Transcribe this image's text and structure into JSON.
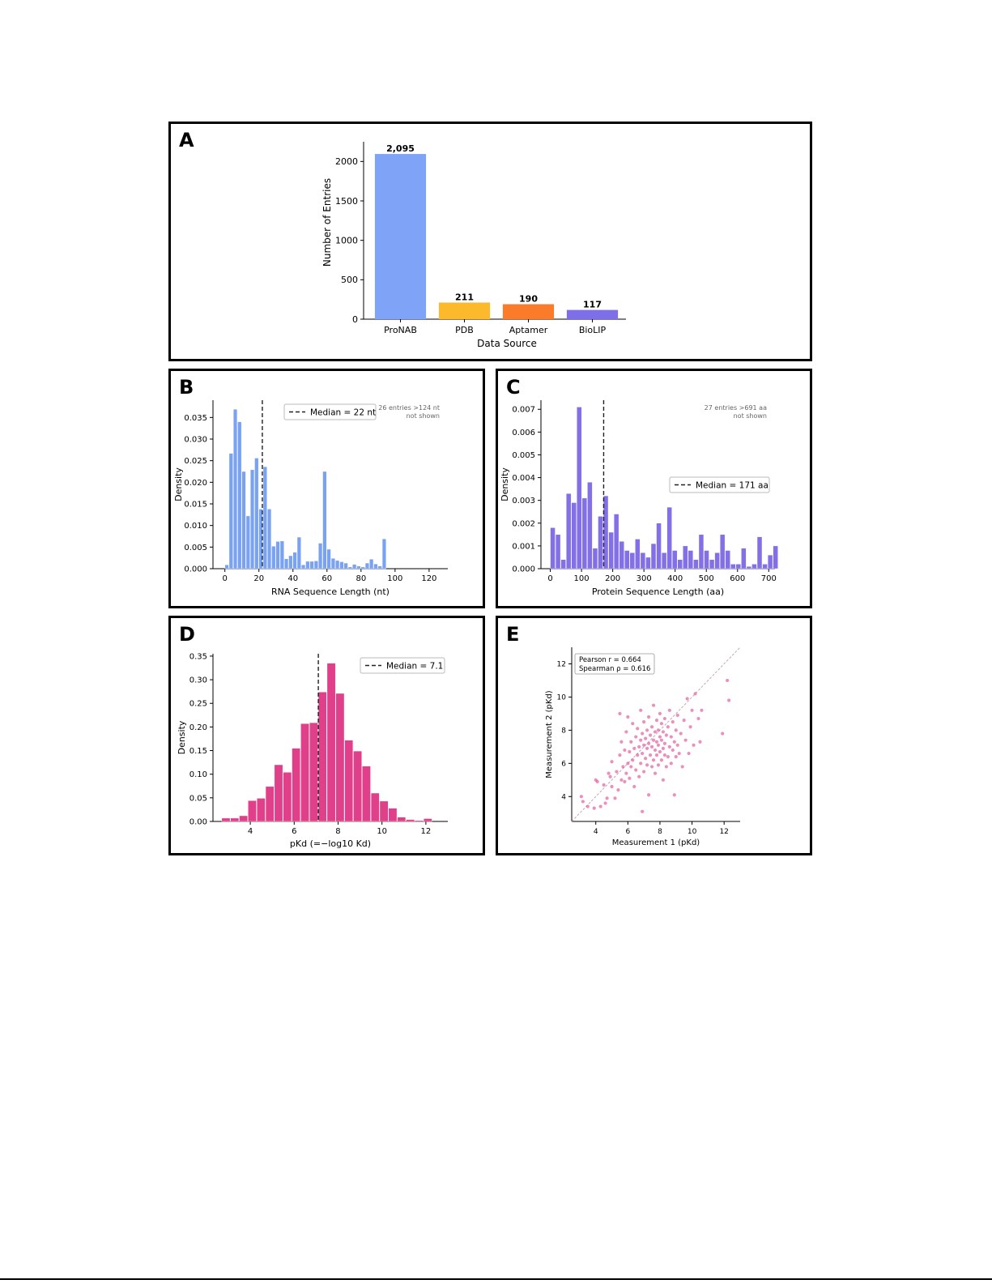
{
  "panels": [
    {
      "letter": "A"
    },
    {
      "letter": "B"
    },
    {
      "letter": "C"
    },
    {
      "letter": "D"
    },
    {
      "letter": "E"
    }
  ],
  "chart_data": [
    {
      "id": "A",
      "type": "bar",
      "categories": [
        "ProNAB",
        "PDB",
        "Aptamer",
        "BioLIP"
      ],
      "values": [
        2095,
        211,
        190,
        117
      ],
      "data_labels": [
        "2,095",
        "211",
        "190",
        "117"
      ],
      "colors": [
        "#7ea3f7",
        "#fbb92b",
        "#fa7b2a",
        "#7e6ee8"
      ],
      "xlabel": "Data Source",
      "ylabel": "Number of Entries",
      "ylim": [
        0,
        2250
      ],
      "yticks": [
        0,
        500,
        1000,
        1500,
        2000
      ]
    },
    {
      "id": "B",
      "type": "bar",
      "subtype": "histogram",
      "color": "#7aa2f2",
      "bin_start": 0,
      "bin_width": 2.5,
      "values": [
        0.0009,
        0.0267,
        0.0369,
        0.034,
        0.0225,
        0.0122,
        0.0229,
        0.0256,
        0.0138,
        0.0236,
        0.0138,
        0.0052,
        0.0063,
        0.0064,
        0.0023,
        0.003,
        0.0038,
        0.0073,
        0.0009,
        0.0017,
        0.0017,
        0.0018,
        0.0059,
        0.0225,
        0.0045,
        0.0024,
        0.0019,
        0.0016,
        0.0013,
        0.0004,
        0.001,
        0.0006,
        0.0004,
        0.0013,
        0.0022,
        0.0011,
        0.0006,
        0.0069
      ],
      "median": 22,
      "legend": "Median = 22 nt",
      "legend_position": "top-center",
      "note": [
        "26 entries >124 nt",
        "not shown"
      ],
      "xlabel": "RNA Sequence Length (nt)",
      "ylabel": "Density",
      "xlim": [
        -7,
        131
      ],
      "ylim": [
        0,
        0.039
      ],
      "xticks": [
        0,
        20,
        40,
        60,
        80,
        100,
        120
      ],
      "yticks": [
        0.0,
        0.005,
        0.01,
        0.015,
        0.02,
        0.025,
        0.03,
        0.035
      ],
      "ytick_labels": [
        "0.000",
        "0.005",
        "0.010",
        "0.015",
        "0.020",
        "0.025",
        "0.030",
        "0.035"
      ]
    },
    {
      "id": "C",
      "type": "bar",
      "subtype": "histogram",
      "color": "#8470e6",
      "bin_start": 0,
      "bin_width": 17,
      "values": [
        0.0018,
        0.0015,
        0.0004,
        0.0033,
        0.0029,
        0.0071,
        0.0031,
        0.0038,
        0.0009,
        0.0023,
        0.0032,
        0.0016,
        0.0024,
        0.0012,
        0.0008,
        0.0007,
        0.0013,
        0.0007,
        0.0005,
        0.0011,
        0.002,
        0.0007,
        0.0027,
        0.0008,
        0.0004,
        0.001,
        0.0008,
        0.0004,
        0.0015,
        0.0008,
        0.0004,
        0.0007,
        0.0015,
        0.0008,
        0.0002,
        0.0002,
        0.0009,
        0.0001,
        0.0002,
        0.0014,
        0.0002,
        0.0006,
        0.001
      ],
      "median": 171,
      "legend": "Median = 171 aa",
      "legend_position": "center-right",
      "note": [
        "27 entries >691 aa",
        "not shown"
      ],
      "xlabel": "Protein Sequence Length (aa)",
      "ylabel": "Density",
      "xlim": [
        -30,
        720
      ],
      "ylim": [
        0,
        0.0074
      ],
      "xticks": [
        0,
        100,
        200,
        300,
        400,
        500,
        600,
        700
      ],
      "yticks": [
        0.0,
        0.001,
        0.002,
        0.003,
        0.004,
        0.005,
        0.006,
        0.007
      ],
      "ytick_labels": [
        "0.000",
        "0.001",
        "0.002",
        "0.003",
        "0.004",
        "0.005",
        "0.006",
        "0.007"
      ]
    },
    {
      "id": "D",
      "type": "bar",
      "subtype": "histogram",
      "color": "#e0408a",
      "bin_start": 2.7,
      "bin_width": 0.4,
      "values": [
        0.007,
        0.007,
        0.012,
        0.044,
        0.049,
        0.074,
        0.12,
        0.104,
        0.155,
        0.207,
        0.209,
        0.274,
        0.335,
        0.271,
        0.172,
        0.149,
        0.117,
        0.06,
        0.043,
        0.028,
        0.009,
        0.004,
        0.002,
        0.006
      ],
      "median": 7.1,
      "legend": "Median = 7.1",
      "legend_position": "top-right",
      "xlabel": "pKd (=−log10 Kd)",
      "ylabel": "Density",
      "xlim": [
        2.3,
        13.0
      ],
      "ylim": [
        0,
        0.355
      ],
      "xticks": [
        4,
        6,
        8,
        10,
        12
      ],
      "yticks": [
        0.0,
        0.05,
        0.1,
        0.15,
        0.2,
        0.25,
        0.3,
        0.35
      ],
      "ytick_labels": [
        "0.00",
        "0.05",
        "0.10",
        "0.15",
        "0.20",
        "0.25",
        "0.30",
        "0.35"
      ]
    },
    {
      "id": "E",
      "type": "scatter",
      "color": "#e0559a",
      "annotation": [
        "Pearson r = 0.664",
        "Spearman ρ = 0.616"
      ],
      "xlabel": "Measurement 1 (pKd)",
      "ylabel": "Measurement 2 (pKd)",
      "xlim": [
        2.5,
        13.0
      ],
      "ylim": [
        2.5,
        13.0
      ],
      "xticks": [
        4,
        6,
        8,
        10,
        12
      ],
      "yticks": [
        4,
        6,
        8,
        10,
        12
      ],
      "identity_line": true,
      "points": [
        [
          3.1,
          4.0
        ],
        [
          3.2,
          3.7
        ],
        [
          3.5,
          3.4
        ],
        [
          3.9,
          3.3
        ],
        [
          4.0,
          5.0
        ],
        [
          4.1,
          4.9
        ],
        [
          4.3,
          3.4
        ],
        [
          4.5,
          4.7
        ],
        [
          4.6,
          3.6
        ],
        [
          4.7,
          3.9
        ],
        [
          4.8,
          5.4
        ],
        [
          4.9,
          5.2
        ],
        [
          5.0,
          4.6
        ],
        [
          5.0,
          6.1
        ],
        [
          5.2,
          3.9
        ],
        [
          5.3,
          5.5
        ],
        [
          5.4,
          4.4
        ],
        [
          5.5,
          6.5
        ],
        [
          5.5,
          9.0
        ],
        [
          5.6,
          5.0
        ],
        [
          5.6,
          7.3
        ],
        [
          5.7,
          5.8
        ],
        [
          5.8,
          4.9
        ],
        [
          5.8,
          6.8
        ],
        [
          5.9,
          5.4
        ],
        [
          5.9,
          7.9
        ],
        [
          6.0,
          6.0
        ],
        [
          6.0,
          8.8
        ],
        [
          6.1,
          5.1
        ],
        [
          6.1,
          6.7
        ],
        [
          6.2,
          5.8
        ],
        [
          6.2,
          7.3
        ],
        [
          6.3,
          6.2
        ],
        [
          6.3,
          8.4
        ],
        [
          6.4,
          4.6
        ],
        [
          6.4,
          6.9
        ],
        [
          6.5,
          5.6
        ],
        [
          6.5,
          7.6
        ],
        [
          6.6,
          6.5
        ],
        [
          6.6,
          8.1
        ],
        [
          6.7,
          5.2
        ],
        [
          6.7,
          7.0
        ],
        [
          6.8,
          6.0
        ],
        [
          6.8,
          7.4
        ],
        [
          6.8,
          9.2
        ],
        [
          6.9,
          3.1
        ],
        [
          6.9,
          6.6
        ],
        [
          6.9,
          7.8
        ],
        [
          7.0,
          5.5
        ],
        [
          7.0,
          7.1
        ],
        [
          7.0,
          8.5
        ],
        [
          7.1,
          6.3
        ],
        [
          7.1,
          7.5
        ],
        [
          7.2,
          5.9
        ],
        [
          7.2,
          6.9
        ],
        [
          7.2,
          8.0
        ],
        [
          7.3,
          4.1
        ],
        [
          7.3,
          7.2
        ],
        [
          7.3,
          8.8
        ],
        [
          7.4,
          6.5
        ],
        [
          7.4,
          7.7
        ],
        [
          7.5,
          5.8
        ],
        [
          7.5,
          7.0
        ],
        [
          7.5,
          8.2
        ],
        [
          7.6,
          6.2
        ],
        [
          7.6,
          7.4
        ],
        [
          7.6,
          9.5
        ],
        [
          7.7,
          5.4
        ],
        [
          7.7,
          6.8
        ],
        [
          7.7,
          7.9
        ],
        [
          7.8,
          6.5
        ],
        [
          7.8,
          7.3
        ],
        [
          7.8,
          8.6
        ],
        [
          7.9,
          5.9
        ],
        [
          7.9,
          7.1
        ],
        [
          7.9,
          8.0
        ],
        [
          8.0,
          6.7
        ],
        [
          8.0,
          7.6
        ],
        [
          8.0,
          9.0
        ],
        [
          8.1,
          6.2
        ],
        [
          8.1,
          7.4
        ],
        [
          8.1,
          8.4
        ],
        [
          8.2,
          5.0
        ],
        [
          8.2,
          6.9
        ],
        [
          8.2,
          7.9
        ],
        [
          8.3,
          6.5
        ],
        [
          8.3,
          7.2
        ],
        [
          8.3,
          8.7
        ],
        [
          8.4,
          5.8
        ],
        [
          8.4,
          7.7
        ],
        [
          8.5,
          6.4
        ],
        [
          8.5,
          8.2
        ],
        [
          8.6,
          7.0
        ],
        [
          8.6,
          9.2
        ],
        [
          8.7,
          6.0
        ],
        [
          8.7,
          7.6
        ],
        [
          8.8,
          6.8
        ],
        [
          8.8,
          8.5
        ],
        [
          8.9,
          4.1
        ],
        [
          8.9,
          7.3
        ],
        [
          9.0,
          6.4
        ],
        [
          9.0,
          8.0
        ],
        [
          9.1,
          7.1
        ],
        [
          9.1,
          8.9
        ],
        [
          9.2,
          6.6
        ],
        [
          9.3,
          7.8
        ],
        [
          9.4,
          5.8
        ],
        [
          9.5,
          8.6
        ],
        [
          9.6,
          7.4
        ],
        [
          9.7,
          9.9
        ],
        [
          9.8,
          6.6
        ],
        [
          9.9,
          8.2
        ],
        [
          10.0,
          9.2
        ],
        [
          10.1,
          7.1
        ],
        [
          10.2,
          10.2
        ],
        [
          10.4,
          8.7
        ],
        [
          10.5,
          7.3
        ],
        [
          10.6,
          9.2
        ],
        [
          11.9,
          7.8
        ],
        [
          12.2,
          11.0
        ],
        [
          12.3,
          9.8
        ]
      ]
    }
  ]
}
